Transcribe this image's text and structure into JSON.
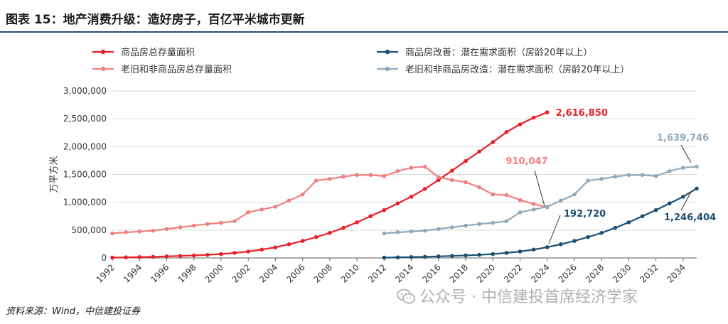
{
  "header": {
    "title": "图表 15：地产消费升级：造好房子，百亿平米城市更新"
  },
  "source": "资料来源：Wind，中信建投证券",
  "watermark": {
    "icon": "wechat-icon",
    "text": "公众号 · 中信建投首席经济学家"
  },
  "colors": {
    "red": "#e8202a",
    "pink": "#f08080",
    "navy": "#1b4f72",
    "gray": "#8fa9bd",
    "title_rule": "#1f4e79"
  },
  "chart_data": {
    "type": "line",
    "ylabel": "万平方米",
    "ylim": [
      0,
      3000000
    ],
    "yticks": [
      0,
      500000,
      1000000,
      1500000,
      2000000,
      2500000,
      3000000
    ],
    "ytick_labels": [
      "0",
      "500,000",
      "1,000,000",
      "1,500,000",
      "2,000,000",
      "2,500,000",
      "3,000,000"
    ],
    "xlim": [
      1992,
      2035
    ],
    "xticks": [
      "1992",
      "1994",
      "1996",
      "1998",
      "2000",
      "2002",
      "2004",
      "2006",
      "2008",
      "2010",
      "2012",
      "2014",
      "2016",
      "2018",
      "2020",
      "2022",
      "2024",
      "2026",
      "2028",
      "2030",
      "2032",
      "2034"
    ],
    "grid": "horizontal",
    "legend_position": "top",
    "series": [
      {
        "name": "商品房总存量面积",
        "color": "#e8202a",
        "x": [
          1992,
          1993,
          1994,
          1995,
          1996,
          1997,
          1998,
          1999,
          2000,
          2001,
          2002,
          2003,
          2004,
          2005,
          2006,
          2007,
          2008,
          2009,
          2010,
          2011,
          2012,
          2013,
          2014,
          2015,
          2016,
          2017,
          2018,
          2019,
          2020,
          2021,
          2022,
          2023,
          2024
        ],
        "y": [
          5000,
          10000,
          15000,
          20000,
          28000,
          36000,
          45000,
          55000,
          70000,
          90000,
          115000,
          150000,
          190000,
          245000,
          305000,
          375000,
          450000,
          540000,
          640000,
          750000,
          860000,
          980000,
          1100000,
          1240000,
          1400000,
          1570000,
          1740000,
          1910000,
          2080000,
          2260000,
          2400000,
          2520000,
          2616850
        ]
      },
      {
        "name": "老旧和非商品房总存量面积",
        "color": "#f08080",
        "x": [
          1992,
          1993,
          1994,
          1995,
          1996,
          1997,
          1998,
          1999,
          2000,
          2001,
          2002,
          2003,
          2004,
          2005,
          2006,
          2007,
          2008,
          2009,
          2010,
          2011,
          2012,
          2013,
          2014,
          2015,
          2016,
          2017,
          2018,
          2019,
          2020,
          2021,
          2022,
          2023,
          2024
        ],
        "y": [
          440000,
          460000,
          475000,
          490000,
          520000,
          550000,
          580000,
          610000,
          630000,
          660000,
          820000,
          870000,
          920000,
          1030000,
          1140000,
          1390000,
          1420000,
          1460000,
          1490000,
          1490000,
          1470000,
          1560000,
          1620000,
          1640000,
          1450000,
          1400000,
          1360000,
          1270000,
          1140000,
          1130000,
          1040000,
          970000,
          910047
        ]
      },
      {
        "name": "商品房改善：潜在需求面积（房龄20年以上）",
        "color": "#1b4f72",
        "x": [
          2012,
          2013,
          2014,
          2015,
          2016,
          2017,
          2018,
          2019,
          2020,
          2021,
          2022,
          2023,
          2024,
          2025,
          2026,
          2027,
          2028,
          2029,
          2030,
          2031,
          2032,
          2033,
          2034,
          2035
        ],
        "y": [
          5000,
          10000,
          15000,
          20000,
          28000,
          36000,
          45000,
          55000,
          70000,
          90000,
          115000,
          150000,
          192720,
          245000,
          305000,
          375000,
          450000,
          540000,
          640000,
          750000,
          860000,
          980000,
          1100000,
          1246404
        ]
      },
      {
        "name": "老旧和非商品房改造：潜在需求面积（房龄20年以上）",
        "color": "#8fa9bd",
        "x": [
          2012,
          2013,
          2014,
          2015,
          2016,
          2017,
          2018,
          2019,
          2020,
          2021,
          2022,
          2023,
          2024,
          2025,
          2026,
          2027,
          2028,
          2029,
          2030,
          2031,
          2032,
          2033,
          2034,
          2035
        ],
        "y": [
          440000,
          460000,
          475000,
          490000,
          520000,
          550000,
          580000,
          610000,
          630000,
          660000,
          820000,
          870000,
          920000,
          1030000,
          1140000,
          1390000,
          1420000,
          1460000,
          1490000,
          1490000,
          1470000,
          1560000,
          1620000,
          1639746
        ]
      }
    ],
    "annotations": [
      {
        "text": "2,616,850",
        "series": 0,
        "x": 2024,
        "y": 2616850,
        "color": "#e8202a"
      },
      {
        "text": "910,047",
        "series": 1,
        "x": 2024,
        "y": 910047,
        "color": "#f08080"
      },
      {
        "text": "192,720",
        "series": 2,
        "x": 2024,
        "y": 192720,
        "color": "#1b4f72"
      },
      {
        "text": "1,246,404",
        "series": 2,
        "x": 2035,
        "y": 1246404,
        "color": "#1b4f72"
      },
      {
        "text": "1,639,746",
        "series": 3,
        "x": 2035,
        "y": 1639746,
        "color": "#8fa9bd"
      }
    ]
  }
}
